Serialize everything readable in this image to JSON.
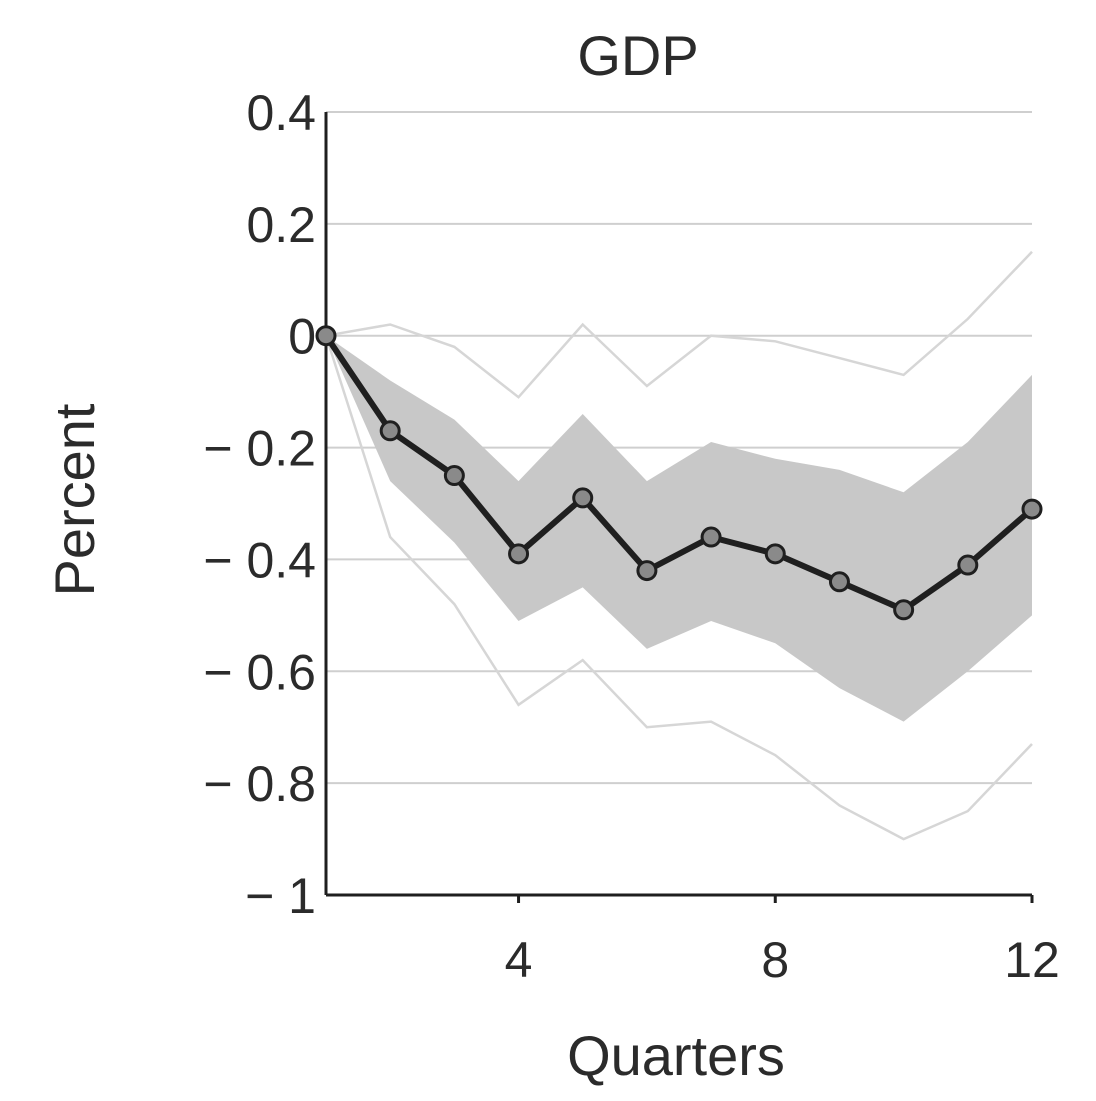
{
  "chart_data": {
    "type": "line",
    "title": "GDP",
    "xlabel": "Quarters",
    "ylabel": "Percent",
    "xlim": [
      1,
      12
    ],
    "ylim": [
      -1,
      0.4
    ],
    "x_ticks": [
      4,
      8,
      12
    ],
    "y_ticks": [
      0.4,
      0.2,
      0,
      -0.2,
      -0.4,
      -0.6,
      -0.8,
      -1
    ],
    "y_tick_labels": [
      "0.4",
      "0.2",
      "0",
      "− 0.2",
      "− 0.4",
      "− 0.6",
      "− 0.8",
      "− 1"
    ],
    "grid": "horizontal",
    "x": [
      1,
      2,
      3,
      4,
      5,
      6,
      7,
      8,
      9,
      10,
      11,
      12
    ],
    "series": [
      {
        "role": "point-estimate",
        "values": [
          0,
          -0.17,
          -0.25,
          -0.39,
          -0.29,
          -0.42,
          -0.36,
          -0.39,
          -0.44,
          -0.49,
          -0.41,
          -0.31
        ]
      },
      {
        "role": "inner-band-upper",
        "values": [
          0,
          -0.08,
          -0.15,
          -0.26,
          -0.14,
          -0.26,
          -0.19,
          -0.22,
          -0.24,
          -0.28,
          -0.19,
          -0.07
        ]
      },
      {
        "role": "inner-band-lower",
        "values": [
          0,
          -0.26,
          -0.37,
          -0.51,
          -0.45,
          -0.56,
          -0.51,
          -0.55,
          -0.63,
          -0.69,
          -0.6,
          -0.5
        ]
      },
      {
        "role": "outer-band-upper",
        "values": [
          0,
          0.02,
          -0.02,
          -0.11,
          0.02,
          -0.09,
          0,
          -0.01,
          -0.04,
          -0.07,
          0.03,
          0.15
        ]
      },
      {
        "role": "outer-band-lower",
        "values": [
          0,
          -0.36,
          -0.48,
          -0.66,
          -0.58,
          -0.7,
          -0.69,
          -0.75,
          -0.84,
          -0.9,
          -0.85,
          -0.73
        ]
      }
    ],
    "colors": {
      "line": "#1f1f1f",
      "band": "#c8c8c8",
      "outer": "#d6d6d6",
      "grid": "#cfcfcf",
      "axis": "#1f1f1f",
      "text": "#2b2b2b"
    }
  }
}
